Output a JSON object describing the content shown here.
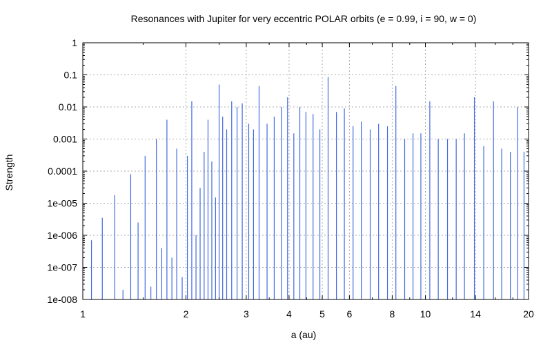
{
  "chart_data": {
    "type": "bar",
    "title": "Resonances with Jupiter for very eccentric POLAR orbits (e = 0.99, i = 90, w = 0)",
    "xlabel": "a (au)",
    "ylabel": "Strength",
    "x_scale": "log",
    "y_scale": "log",
    "xlim": [
      1,
      20
    ],
    "ylim": [
      1e-08,
      1
    ],
    "x_ticks": [
      1,
      2,
      3,
      4,
      5,
      6,
      8,
      10,
      14,
      20
    ],
    "x_tick_labels": [
      "1",
      "2",
      "3",
      "4",
      "5",
      "6",
      "8",
      "10",
      "14",
      "20"
    ],
    "y_ticks": [
      1,
      0.1,
      0.01,
      0.001,
      0.0001,
      1e-05,
      1e-06,
      1e-07,
      1e-08
    ],
    "y_tick_labels": [
      "1",
      "0.1",
      "0.01",
      "0.001",
      "0.0001",
      "1e-005",
      "1e-006",
      "1e-007",
      "1e-008"
    ],
    "grid": true,
    "bar_color": "#4169e1",
    "baseline": 1e-08,
    "points": [
      [
        1.06,
        7e-07
      ],
      [
        1.14,
        3.5e-06
      ],
      [
        1.24,
        1.8e-05
      ],
      [
        1.31,
        2e-08
      ],
      [
        1.38,
        8e-05
      ],
      [
        1.45,
        2.5e-06
      ],
      [
        1.52,
        0.0003
      ],
      [
        1.58,
        2.5e-08
      ],
      [
        1.64,
        0.001
      ],
      [
        1.7,
        4e-07
      ],
      [
        1.76,
        0.004
      ],
      [
        1.82,
        2e-07
      ],
      [
        1.88,
        0.0005
      ],
      [
        1.95,
        5e-08
      ],
      [
        2.02,
        0.0003
      ],
      [
        2.08,
        0.015
      ],
      [
        2.14,
        1e-06
      ],
      [
        2.2,
        3e-05
      ],
      [
        2.26,
        0.0004
      ],
      [
        2.32,
        0.004
      ],
      [
        2.38,
        0.0002
      ],
      [
        2.44,
        1.5e-05
      ],
      [
        2.5,
        0.05
      ],
      [
        2.56,
        0.005
      ],
      [
        2.63,
        0.002
      ],
      [
        2.72,
        0.015
      ],
      [
        2.82,
        0.01
      ],
      [
        2.92,
        0.013
      ],
      [
        3.05,
        0.003
      ],
      [
        3.15,
        0.002
      ],
      [
        3.27,
        0.045
      ],
      [
        3.45,
        0.003
      ],
      [
        3.62,
        0.005
      ],
      [
        3.8,
        0.01
      ],
      [
        3.96,
        0.02
      ],
      [
        4.13,
        0.0015
      ],
      [
        4.3,
        0.01
      ],
      [
        4.48,
        0.007
      ],
      [
        4.7,
        0.006
      ],
      [
        4.92,
        0.002
      ],
      [
        5.2,
        0.085
      ],
      [
        5.5,
        0.007
      ],
      [
        5.8,
        0.009
      ],
      [
        6.15,
        0.0025
      ],
      [
        6.5,
        0.0035
      ],
      [
        6.9,
        0.002
      ],
      [
        7.3,
        0.003
      ],
      [
        7.75,
        0.0025
      ],
      [
        8.2,
        0.045
      ],
      [
        8.7,
        0.001
      ],
      [
        9.2,
        0.0015
      ],
      [
        9.7,
        0.0015
      ],
      [
        10.3,
        0.015
      ],
      [
        10.9,
        0.001
      ],
      [
        11.6,
        0.001
      ],
      [
        12.3,
        0.001
      ],
      [
        13.0,
        0.0015
      ],
      [
        13.9,
        0.02
      ],
      [
        14.8,
        0.0006
      ],
      [
        15.8,
        0.015
      ],
      [
        16.7,
        0.0005
      ],
      [
        17.7,
        0.0004
      ],
      [
        18.6,
        0.01
      ],
      [
        19.4,
        0.0004
      ]
    ]
  }
}
